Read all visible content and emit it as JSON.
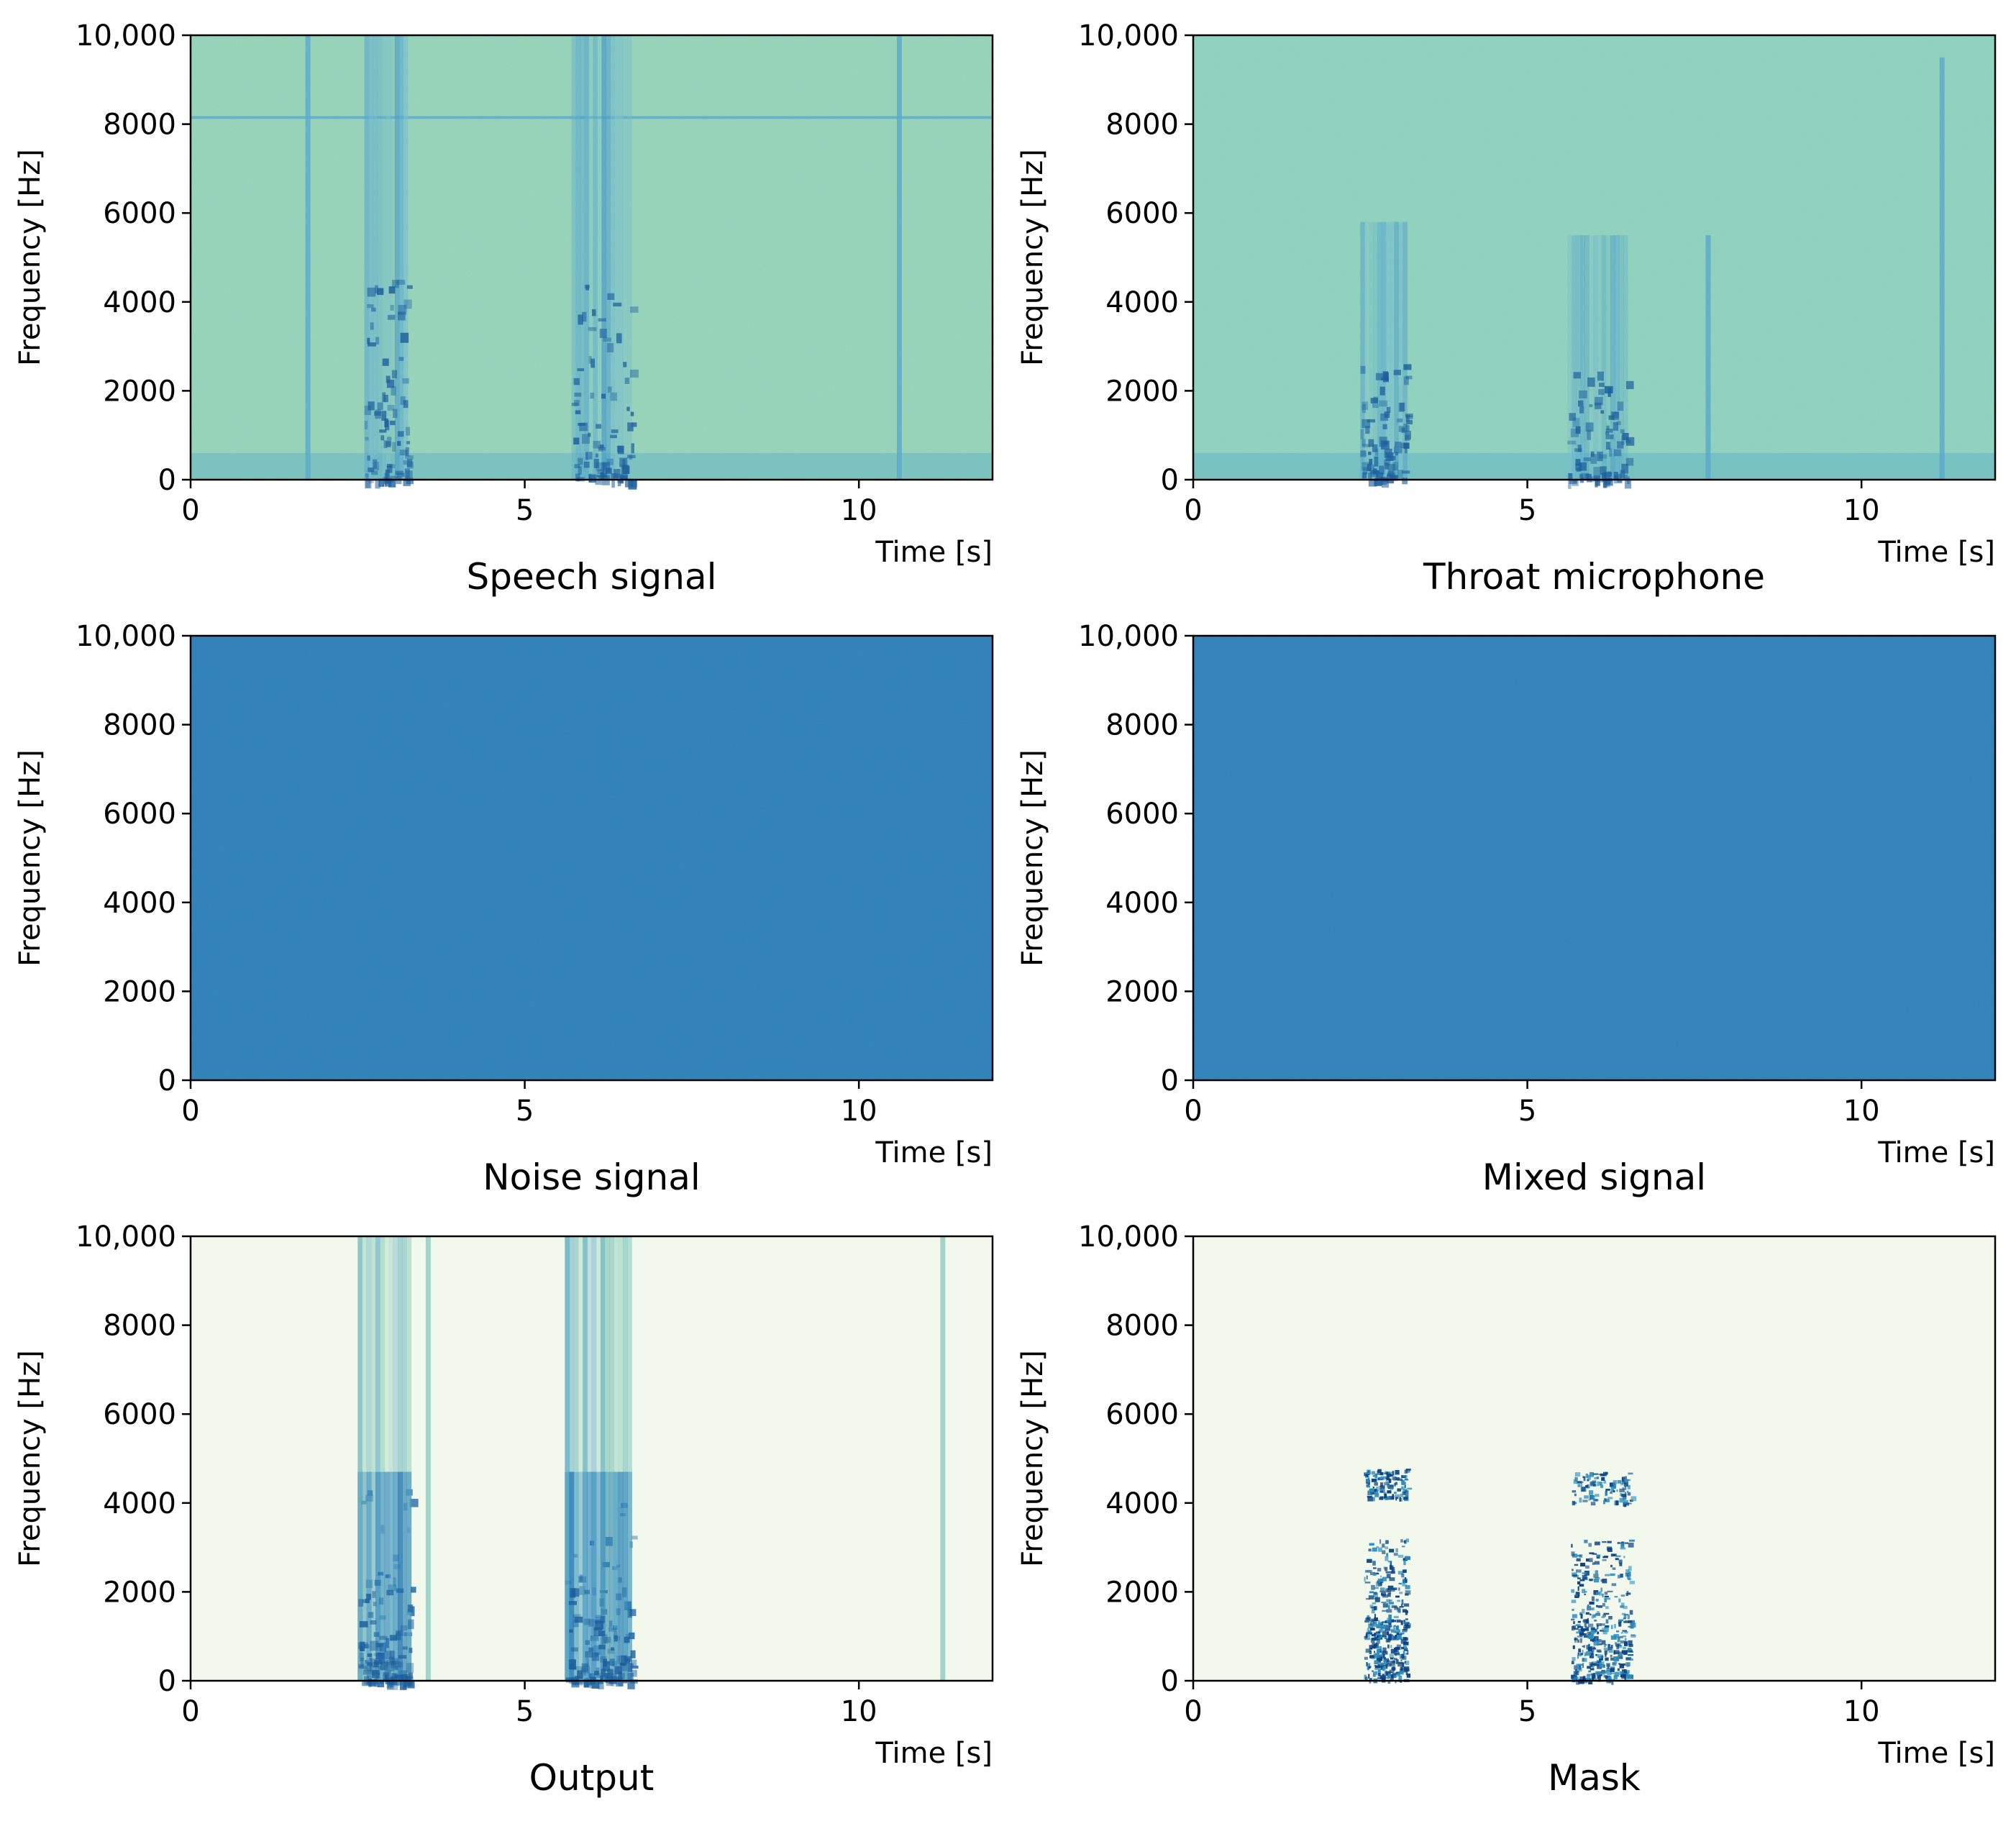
{
  "chart_data": [
    {
      "type": "heatmap",
      "variant": "speech",
      "title": "Speech signal",
      "xlabel": "Time [s]",
      "ylabel": "Frequency [Hz]",
      "xlim": [
        0,
        12
      ],
      "ylim": [
        0,
        10000
      ],
      "xticks": [
        0,
        5,
        10
      ],
      "yticks": [
        0,
        2000,
        4000,
        6000,
        8000,
        10000
      ],
      "yticklabels": [
        "0",
        "2000",
        "4000",
        "6000",
        "8000",
        "10,000"
      ],
      "colormap": "GnBu",
      "base_color": "#9dd8b8",
      "activity": [
        {
          "t0": 2.6,
          "t1": 3.25,
          "fmax": 10000
        },
        {
          "t0": 5.7,
          "t1": 6.6,
          "fmax": 10000
        }
      ],
      "thin_lines": [
        {
          "t": 1.75,
          "fmax": 10000
        },
        {
          "t": 10.6,
          "fmax": 10000
        }
      ],
      "horizontal_lines": [
        {
          "f": 8150
        }
      ]
    },
    {
      "type": "heatmap",
      "variant": "throat",
      "title": "Throat microphone",
      "xlabel": "Time [s]",
      "ylabel": "Frequency [Hz]",
      "xlim": [
        0,
        12
      ],
      "ylim": [
        0,
        10000
      ],
      "xticks": [
        0,
        5,
        10
      ],
      "yticks": [
        0,
        2000,
        4000,
        6000,
        8000,
        10000
      ],
      "yticklabels": [
        "0",
        "2000",
        "4000",
        "6000",
        "8000",
        "10,000"
      ],
      "colormap": "GnBu",
      "base_color": "#95d6bd",
      "activity": [
        {
          "t0": 2.5,
          "t1": 3.2,
          "fmax": 5800
        },
        {
          "t0": 5.6,
          "t1": 6.5,
          "fmax": 5500
        }
      ],
      "thin_lines": [
        {
          "t": 7.7,
          "fmax": 5500
        },
        {
          "t": 11.2,
          "fmax": 9500
        }
      ],
      "horizontal_lines": []
    },
    {
      "type": "heatmap",
      "variant": "noise",
      "title": "Noise signal",
      "xlabel": "Time [s]",
      "ylabel": "Frequency [Hz]",
      "xlim": [
        0,
        12
      ],
      "ylim": [
        0,
        10000
      ],
      "xticks": [
        0,
        5,
        10
      ],
      "yticks": [
        0,
        2000,
        4000,
        6000,
        8000,
        10000
      ],
      "yticklabels": [
        "0",
        "2000",
        "4000",
        "6000",
        "8000",
        "10,000"
      ],
      "colormap": "GnBu",
      "base_color": "#2d7fb6",
      "activity": [],
      "thin_lines": [],
      "horizontal_lines": []
    },
    {
      "type": "heatmap",
      "variant": "mixed",
      "title": "Mixed signal",
      "xlabel": "Time [s]",
      "ylabel": "Frequency [Hz]",
      "xlim": [
        0,
        12
      ],
      "ylim": [
        0,
        10000
      ],
      "xticks": [
        0,
        5,
        10
      ],
      "yticks": [
        0,
        2000,
        4000,
        6000,
        8000,
        10000
      ],
      "yticklabels": [
        "0",
        "2000",
        "4000",
        "6000",
        "8000",
        "10,000"
      ],
      "colormap": "GnBu",
      "base_color": "#2f80b7",
      "activity": [],
      "thin_lines": [],
      "horizontal_lines": []
    },
    {
      "type": "heatmap",
      "variant": "output",
      "title": "Output",
      "xlabel": "Time [s]",
      "ylabel": "Frequency [Hz]",
      "xlim": [
        0,
        12
      ],
      "ylim": [
        0,
        10000
      ],
      "xticks": [
        0,
        5,
        10
      ],
      "yticks": [
        0,
        2000,
        4000,
        6000,
        8000,
        10000
      ],
      "yticklabels": [
        "0",
        "2000",
        "4000",
        "6000",
        "8000",
        "10,000"
      ],
      "colormap": "GnBu",
      "base_color": "#f2f9ec",
      "activity": [
        {
          "t0": 2.5,
          "t1": 3.3,
          "fmax": 10000
        },
        {
          "t0": 5.6,
          "t1": 6.6,
          "fmax": 10000
        }
      ],
      "thin_lines": [
        {
          "t": 3.55,
          "fmax": 10000
        },
        {
          "t": 11.25,
          "fmax": 10000
        }
      ],
      "horizontal_lines": []
    },
    {
      "type": "heatmap",
      "variant": "mask",
      "title": "Mask",
      "xlabel": "Time [s]",
      "ylabel": "Frequency [Hz]",
      "xlim": [
        0,
        12
      ],
      "ylim": [
        0,
        10000
      ],
      "xticks": [
        0,
        5,
        10
      ],
      "yticks": [
        0,
        2000,
        4000,
        6000,
        8000,
        10000
      ],
      "yticklabels": [
        "0",
        "2000",
        "4000",
        "6000",
        "8000",
        "10,000"
      ],
      "colormap": "GnBu",
      "base_color": "#f2f9ec",
      "activity": [
        {
          "t0": 2.55,
          "t1": 3.2,
          "fmax": 4800
        },
        {
          "t0": 5.65,
          "t1": 6.55,
          "fmax": 4700
        }
      ],
      "thin_lines": [],
      "horizontal_lines": []
    }
  ]
}
